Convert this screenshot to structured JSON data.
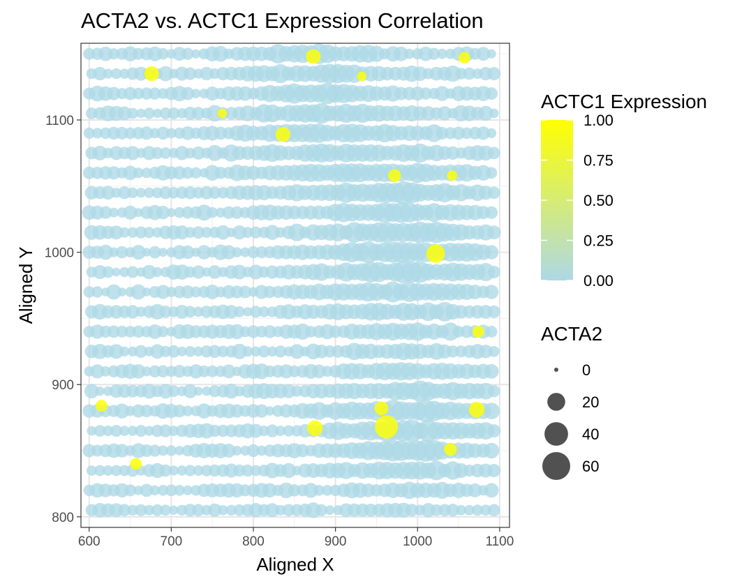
{
  "chart_data": {
    "type": "scatter",
    "title": "ACTA2 vs. ACTC1 Expression Correlation",
    "xlabel": "Aligned X",
    "ylabel": "Aligned Y",
    "xlim": [
      590,
      1112
    ],
    "ylim": [
      792,
      1158
    ],
    "x_ticks": [
      600,
      700,
      800,
      900,
      1000,
      1100
    ],
    "y_ticks": [
      800,
      900,
      1000,
      1100
    ],
    "grid": true,
    "legend_position": "right",
    "color_legend": {
      "title": "ACTC1 Expression",
      "ticks": [
        "1.00",
        "0.75",
        "0.50",
        "0.25",
        "0.00"
      ],
      "low_color": "#add8e6",
      "high_color": "#ffff00"
    },
    "size_legend": {
      "title": "ACTA2",
      "entries": [
        {
          "label": "0",
          "value": 0
        },
        {
          "label": "20",
          "value": 20
        },
        {
          "label": "40",
          "value": 40
        },
        {
          "label": "60",
          "value": 60
        }
      ]
    },
    "grid_spec": {
      "x_start": 600,
      "x_step": 10,
      "x_count": 50,
      "y_rows": [
        1150,
        1135,
        1120,
        1105,
        1090,
        1075,
        1060,
        1045,
        1030,
        1015,
        1000,
        985,
        970,
        955,
        940,
        925,
        910,
        895,
        880,
        865,
        850,
        835,
        820,
        805
      ]
    },
    "highlight_points": [
      {
        "x": 676,
        "y": 1135,
        "actc1": 1.0,
        "acta2": 12
      },
      {
        "x": 873,
        "y": 1148,
        "actc1": 1.0,
        "acta2": 12
      },
      {
        "x": 1057,
        "y": 1147,
        "actc1": 1.0,
        "acta2": 6
      },
      {
        "x": 932,
        "y": 1133,
        "actc1": 1.0,
        "acta2": 3
      },
      {
        "x": 762,
        "y": 1105,
        "actc1": 1.0,
        "acta2": 3
      },
      {
        "x": 836,
        "y": 1089,
        "actc1": 1.0,
        "acta2": 12
      },
      {
        "x": 972,
        "y": 1058,
        "actc1": 1.0,
        "acta2": 8
      },
      {
        "x": 1042,
        "y": 1058,
        "actc1": 1.0,
        "acta2": 4
      },
      {
        "x": 1022,
        "y": 999,
        "actc1": 1.0,
        "acta2": 22
      },
      {
        "x": 1074,
        "y": 940,
        "actc1": 1.0,
        "acta2": 6
      },
      {
        "x": 615,
        "y": 884,
        "actc1": 1.0,
        "acta2": 6
      },
      {
        "x": 956,
        "y": 882,
        "actc1": 1.0,
        "acta2": 10
      },
      {
        "x": 1072,
        "y": 881,
        "actc1": 1.0,
        "acta2": 14
      },
      {
        "x": 875,
        "y": 867,
        "actc1": 1.0,
        "acta2": 14
      },
      {
        "x": 962,
        "y": 868,
        "actc1": 1.0,
        "acta2": 38
      },
      {
        "x": 1040,
        "y": 851,
        "actc1": 1.0,
        "acta2": 8
      },
      {
        "x": 657,
        "y": 840,
        "actc1": 1.0,
        "acta2": 6
      }
    ]
  }
}
